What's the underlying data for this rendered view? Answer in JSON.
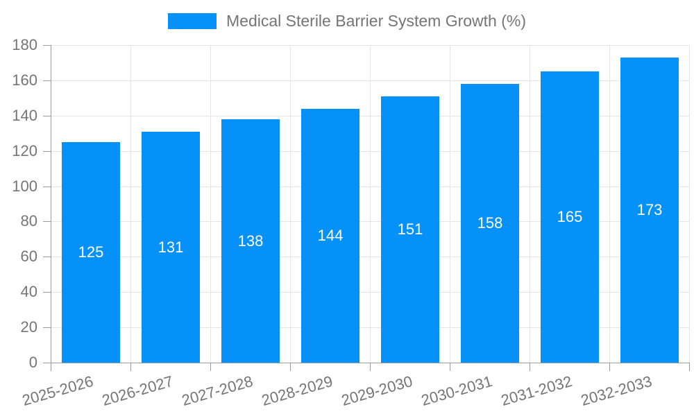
{
  "legend": {
    "label": "Medical Sterile Barrier System Growth (%)"
  },
  "chart_data": {
    "type": "bar",
    "title": "",
    "legend_label": "Medical Sterile Barrier System Growth (%)",
    "legend_position": "top-center",
    "categories": [
      "2025-2026",
      "2026-2027",
      "2027-2028",
      "2028-2029",
      "2029-2030",
      "2030-2031",
      "2031-2032",
      "2032-2033"
    ],
    "values": [
      125,
      131,
      138,
      144,
      151,
      158,
      165,
      173
    ],
    "xlabel": "",
    "ylabel": "",
    "ylim": [
      0,
      180
    ],
    "ytick_step": 20,
    "yticks": [
      0,
      20,
      40,
      60,
      80,
      100,
      120,
      140,
      160,
      180
    ],
    "grid": true,
    "value_labels_inside_bars": true,
    "xlabel_rotation_deg": -16,
    "colors": {
      "bar": "#0591F7",
      "bar_value_label": "#FFFFFF",
      "axis_line": "#9B9B9B",
      "tick": "#9B9B9B",
      "grid_line": "#E4E4E4",
      "axis_label": "#757575",
      "legend_text": "#757575",
      "background": "#FFFFFF"
    }
  }
}
